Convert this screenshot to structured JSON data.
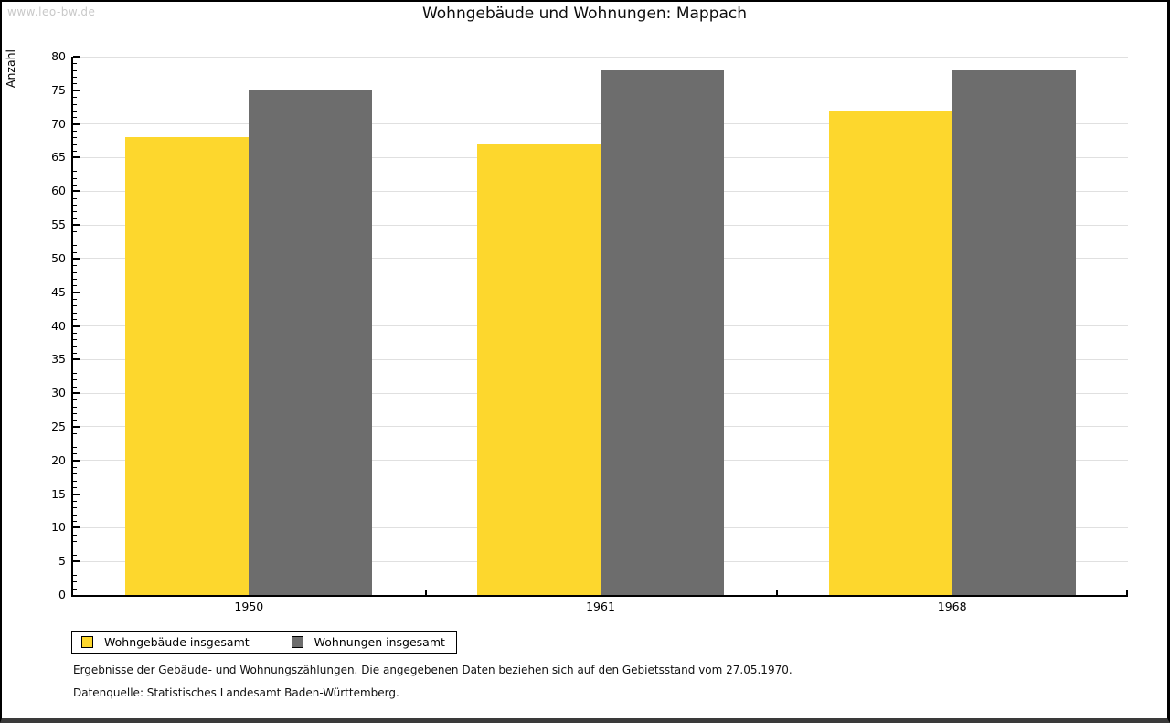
{
  "watermark": "www.leo-bw.de",
  "chart_data": {
    "type": "bar",
    "title": "Wohngebäude und Wohnungen: Mappach",
    "categories": [
      "1950",
      "1961",
      "1968"
    ],
    "series": [
      {
        "name": "Wohngebäude insgesamt",
        "color": "#FDD72D",
        "values": [
          68,
          67,
          72
        ]
      },
      {
        "name": "Wohnungen insgesamt",
        "color": "#6D6D6D",
        "values": [
          75,
          78,
          78
        ]
      }
    ],
    "xlabel": "",
    "ylabel": "Anzahl",
    "ylim": [
      0,
      80
    ],
    "ytick_step": 5,
    "minor_tick_step": 1,
    "grid": true,
    "gridline_color": "#e0e0e0",
    "legend_position": "bottom-left"
  },
  "footnotes": [
    "Ergebnisse der Gebäude- und Wohnungszählungen. Die angegebenen Daten beziehen sich auf den Gebietsstand vom 27.05.1970.",
    "Datenquelle: Statistisches Landesamt Baden-Württemberg."
  ]
}
